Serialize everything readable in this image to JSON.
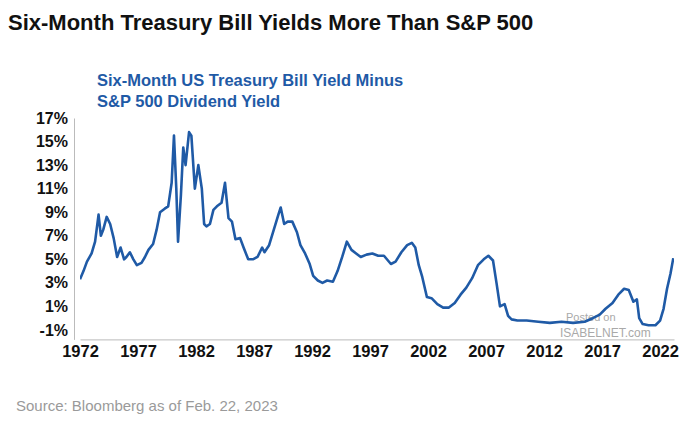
{
  "chart_data": {
    "type": "line",
    "title": "Six-Month Treasury Bill Yields More Than S&P 500",
    "subtitle": [
      "Six-Month US Treasury Bill Yield Minus",
      "S&P 500 Dividend Yield"
    ],
    "source": "Source: Bloomberg as of Feb. 22, 2023",
    "annotations": [
      "Posted on",
      "ISABELNET.com"
    ],
    "color": "#1f5aa6",
    "grid": false,
    "x": [
      1972.0,
      1972.3,
      1972.6,
      1973.0,
      1973.3,
      1973.6,
      1973.8,
      1974.0,
      1974.3,
      1974.6,
      1974.9,
      1975.2,
      1975.5,
      1975.8,
      1976.0,
      1976.3,
      1976.6,
      1976.9,
      1977.3,
      1977.6,
      1977.9,
      1978.3,
      1978.6,
      1978.9,
      1979.3,
      1979.6,
      1979.9,
      1980.1,
      1980.3,
      1980.45,
      1980.7,
      1980.9,
      1981.1,
      1981.4,
      1981.6,
      1981.9,
      1982.2,
      1982.5,
      1982.7,
      1982.9,
      1983.2,
      1983.5,
      1983.8,
      1984.2,
      1984.5,
      1984.8,
      1985.1,
      1985.4,
      1985.8,
      1986.1,
      1986.5,
      1986.9,
      1987.3,
      1987.7,
      1987.9,
      1988.3,
      1988.7,
      1989.1,
      1989.3,
      1989.6,
      1989.9,
      1990.3,
      1990.7,
      1991.0,
      1991.4,
      1991.8,
      1992.1,
      1992.5,
      1992.9,
      1993.3,
      1993.8,
      1994.2,
      1994.6,
      1995.0,
      1995.4,
      1995.8,
      1996.2,
      1996.7,
      1997.2,
      1997.7,
      1998.2,
      1998.8,
      1999.2,
      1999.7,
      2000.2,
      2000.6,
      2000.9,
      2001.2,
      2001.5,
      2001.9,
      2002.3,
      2002.8,
      2003.3,
      2003.8,
      2004.3,
      2004.8,
      2005.3,
      2005.8,
      2006.3,
      2006.8,
      2007.2,
      2007.6,
      2007.9,
      2008.2,
      2008.6,
      2008.9,
      2009.2,
      2009.7,
      2010.5,
      2011.5,
      2012.5,
      2013.5,
      2014.5,
      2015.5,
      2016.2,
      2016.8,
      2017.3,
      2017.9,
      2018.4,
      2018.9,
      2019.3,
      2019.7,
      2020.0,
      2020.2,
      2020.5,
      2021.0,
      2021.6,
      2022.0,
      2022.3,
      2022.6,
      2022.9,
      2023.14
    ],
    "values": [
      3.3,
      4.0,
      4.8,
      5.5,
      6.5,
      8.8,
      7.0,
      7.5,
      8.6,
      8.0,
      6.8,
      5.2,
      6.0,
      5.0,
      5.2,
      5.6,
      5.0,
      4.5,
      4.7,
      5.2,
      5.8,
      6.3,
      7.5,
      9.0,
      9.3,
      9.5,
      11.5,
      15.5,
      11.0,
      6.5,
      10.5,
      14.5,
      13.0,
      15.8,
      15.5,
      11.0,
      13.0,
      11.0,
      8.0,
      7.8,
      8.0,
      9.2,
      9.5,
      9.8,
      11.5,
      8.5,
      8.2,
      6.7,
      6.8,
      6.0,
      5.0,
      5.0,
      5.2,
      6.0,
      5.6,
      6.2,
      7.5,
      8.8,
      9.4,
      8.0,
      8.2,
      8.2,
      7.3,
      6.2,
      5.5,
      4.6,
      3.6,
      3.2,
      3.0,
      3.2,
      3.1,
      4.0,
      5.2,
      6.5,
      5.8,
      5.5,
      5.2,
      5.4,
      5.5,
      5.3,
      5.3,
      4.6,
      4.8,
      5.6,
      6.2,
      6.4,
      6.0,
      4.5,
      3.5,
      1.8,
      1.7,
      1.2,
      0.9,
      0.9,
      1.3,
      2.0,
      2.6,
      3.4,
      4.5,
      5.0,
      5.3,
      4.9,
      3.0,
      1.0,
      1.2,
      0.2,
      -0.1,
      -0.2,
      -0.2,
      -0.3,
      -0.4,
      -0.3,
      -0.4,
      -0.3,
      0.0,
      0.3,
      0.8,
      1.3,
      2.0,
      2.5,
      2.4,
      1.4,
      1.6,
      0.0,
      -0.5,
      -0.6,
      -0.6,
      -0.2,
      0.8,
      2.5,
      3.8,
      5.1
    ],
    "xlim": [
      1972,
      2023.2
    ],
    "xticks": [
      1972,
      1977,
      1982,
      1987,
      1992,
      1997,
      2002,
      2007,
      2012,
      2017,
      2022
    ],
    "ylim": [
      -1.8,
      17
    ],
    "yticks": [
      {
        "value": -1,
        "label": "-1%"
      },
      {
        "value": 1,
        "label": "1%"
      },
      {
        "value": 3,
        "label": "3%"
      },
      {
        "value": 5,
        "label": "5%"
      },
      {
        "value": 7,
        "label": "7%"
      },
      {
        "value": 9,
        "label": "9%"
      },
      {
        "value": 11,
        "label": "11%"
      },
      {
        "value": 13,
        "label": "13%"
      },
      {
        "value": 15,
        "label": "15%"
      },
      {
        "value": 17,
        "label": "17%"
      }
    ]
  }
}
